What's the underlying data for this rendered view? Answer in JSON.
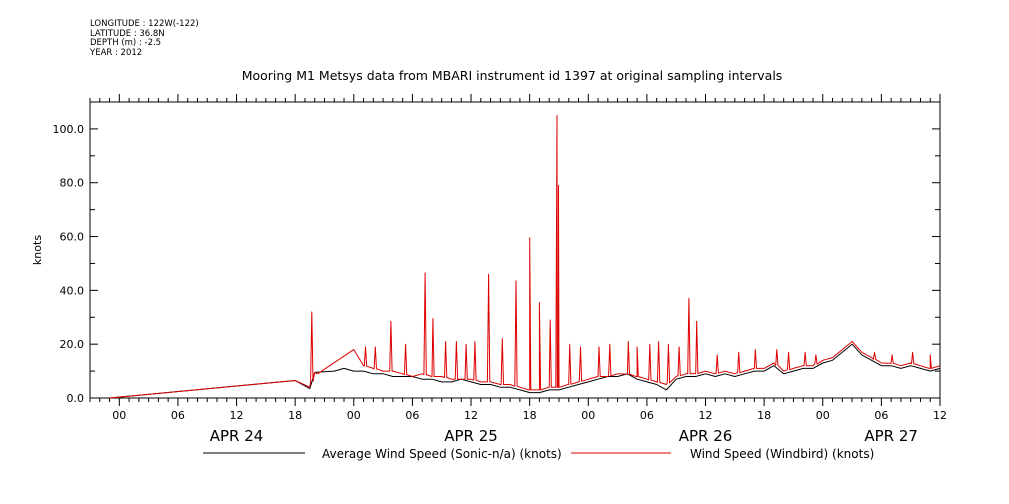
{
  "meta": {
    "longitude": "LONGITUDE : 122W(-122)",
    "latitude": "LATITUDE : 36.8N",
    "depth": "DEPTH (m) : -2.5",
    "year": "YEAR : 2012"
  },
  "title": "Mooring M1 Metsys data from MBARI instrument id 1397 at original sampling intervals",
  "colors": {
    "average": "#000000",
    "windbird": "#dd0000"
  },
  "chart_data": {
    "type": "line",
    "ylabel": "knots",
    "ylim": [
      0,
      110
    ],
    "yticks": [
      0,
      20,
      40,
      60,
      80,
      100
    ],
    "ytick_labels": [
      "0.0",
      "20.0",
      "40.0",
      "60.0",
      "80.0",
      "100.0"
    ],
    "xlim_hours": [
      -3,
      84
    ],
    "x_unit": "hours from 2012-04-24 00:00",
    "xticks": [
      {
        "h": 0,
        "label": "00"
      },
      {
        "h": 6,
        "label": "06"
      },
      {
        "h": 12,
        "label": "12"
      },
      {
        "h": 18,
        "label": "18"
      },
      {
        "h": 24,
        "label": "00"
      },
      {
        "h": 30,
        "label": "06"
      },
      {
        "h": 36,
        "label": "12"
      },
      {
        "h": 42,
        "label": "18"
      },
      {
        "h": 48,
        "label": "00"
      },
      {
        "h": 54,
        "label": "06"
      },
      {
        "h": 60,
        "label": "12"
      },
      {
        "h": 66,
        "label": "18"
      },
      {
        "h": 72,
        "label": "00"
      },
      {
        "h": 78,
        "label": "06"
      },
      {
        "h": 84,
        "label": "12"
      }
    ],
    "date_labels": [
      {
        "h": 12,
        "label": "APR 24"
      },
      {
        "h": 36,
        "label": "APR 25"
      },
      {
        "h": 60,
        "label": "APR 26"
      },
      {
        "h": 79,
        "label": "APR 27"
      }
    ],
    "series": [
      {
        "name": "Average Wind Speed (Sonic-n/a) (knots)",
        "x": [
          -1,
          18,
          19.5,
          20,
          22,
          23,
          24,
          25,
          26,
          27,
          28,
          29,
          30,
          31,
          32,
          33,
          34,
          35,
          36,
          37,
          38,
          39,
          40,
          41,
          42,
          43,
          44,
          45,
          46,
          47,
          48,
          49,
          50,
          51,
          52,
          53,
          54,
          55,
          56,
          57,
          58,
          59,
          60,
          61,
          62,
          63,
          64,
          65,
          66,
          67,
          68,
          69,
          70,
          71,
          72,
          73,
          74,
          75,
          76,
          77,
          78,
          79,
          80,
          81,
          82,
          83,
          84
        ],
        "y": [
          0,
          6.5,
          3.5,
          9.5,
          10,
          11,
          10,
          10,
          9,
          9,
          8,
          8,
          8,
          7,
          7,
          6,
          6,
          7,
          6,
          5,
          5,
          4,
          4,
          3,
          2,
          2,
          3,
          3,
          4,
          5,
          6,
          7,
          8,
          8,
          9,
          7,
          6,
          5,
          3,
          7,
          8,
          8,
          9,
          8,
          9,
          8,
          9,
          10,
          10,
          12,
          9,
          10,
          11,
          11,
          13,
          14,
          17,
          20,
          16,
          14,
          12,
          12,
          11,
          12,
          11,
          10,
          11
        ]
      },
      {
        "name": "Wind Speed (Windbird) (knots)",
        "x": [
          -1,
          18,
          19.5,
          20,
          20.3,
          24,
          25,
          26,
          27,
          28,
          29,
          30,
          31,
          32,
          33,
          34,
          35,
          36,
          37,
          38,
          39,
          40,
          41,
          42,
          43,
          44,
          45,
          46,
          47,
          48,
          49,
          50,
          51,
          52,
          53,
          54,
          55,
          56,
          57,
          58,
          59,
          60,
          61,
          62,
          63,
          64,
          65,
          66,
          67,
          68,
          69,
          70,
          71,
          72,
          73,
          74,
          75,
          76,
          77,
          78,
          79,
          80,
          81,
          82,
          83,
          84
        ],
        "y": [
          0,
          6.5,
          4,
          9.5,
          9,
          18,
          12,
          11,
          10,
          10,
          9,
          8,
          9,
          8,
          8,
          7,
          7,
          7,
          6,
          6,
          5,
          5,
          4,
          3,
          3,
          4,
          4,
          5,
          6,
          7,
          8,
          8,
          9,
          9,
          8,
          7,
          6,
          5,
          8,
          9,
          9,
          10,
          9,
          10,
          9,
          10,
          11,
          11,
          13,
          10,
          11,
          12,
          12,
          14,
          15,
          18,
          21,
          17,
          15,
          13,
          13,
          12,
          13,
          12,
          11,
          12
        ],
        "spikes": [
          {
            "x": 19.7,
            "y": 32
          },
          {
            "x": 27.8,
            "y": 28.5
          },
          {
            "x": 31.3,
            "y": 46.5
          },
          {
            "x": 32.1,
            "y": 29.5
          },
          {
            "x": 37.8,
            "y": 46
          },
          {
            "x": 40.6,
            "y": 43.5
          },
          {
            "x": 42.0,
            "y": 59.5
          },
          {
            "x": 43.0,
            "y": 35.5
          },
          {
            "x": 44.1,
            "y": 29
          },
          {
            "x": 44.8,
            "y": 105
          },
          {
            "x": 44.95,
            "y": 79
          },
          {
            "x": 58.3,
            "y": 37
          },
          {
            "x": 59.1,
            "y": 28.5
          },
          {
            "x": 25.2,
            "y": 19
          },
          {
            "x": 26.2,
            "y": 19
          },
          {
            "x": 29.3,
            "y": 20
          },
          {
            "x": 33.4,
            "y": 21
          },
          {
            "x": 34.5,
            "y": 21
          },
          {
            "x": 35.5,
            "y": 20
          },
          {
            "x": 36.4,
            "y": 21
          },
          {
            "x": 39.2,
            "y": 22
          },
          {
            "x": 46.1,
            "y": 20
          },
          {
            "x": 47.2,
            "y": 19
          },
          {
            "x": 49.1,
            "y": 19
          },
          {
            "x": 50.2,
            "y": 20
          },
          {
            "x": 52.1,
            "y": 21
          },
          {
            "x": 53.0,
            "y": 19
          },
          {
            "x": 54.3,
            "y": 20
          },
          {
            "x": 55.2,
            "y": 21
          },
          {
            "x": 56.2,
            "y": 20
          },
          {
            "x": 57.3,
            "y": 19
          },
          {
            "x": 61.2,
            "y": 16
          },
          {
            "x": 63.4,
            "y": 17
          },
          {
            "x": 65.1,
            "y": 18
          },
          {
            "x": 67.3,
            "y": 18
          },
          {
            "x": 68.5,
            "y": 17
          },
          {
            "x": 70.2,
            "y": 17
          },
          {
            "x": 71.3,
            "y": 16
          },
          {
            "x": 77.3,
            "y": 17
          },
          {
            "x": 79.1,
            "y": 16
          },
          {
            "x": 81.2,
            "y": 17
          },
          {
            "x": 83.0,
            "y": 16
          }
        ]
      }
    ],
    "grid": false,
    "legend": "bottom"
  }
}
